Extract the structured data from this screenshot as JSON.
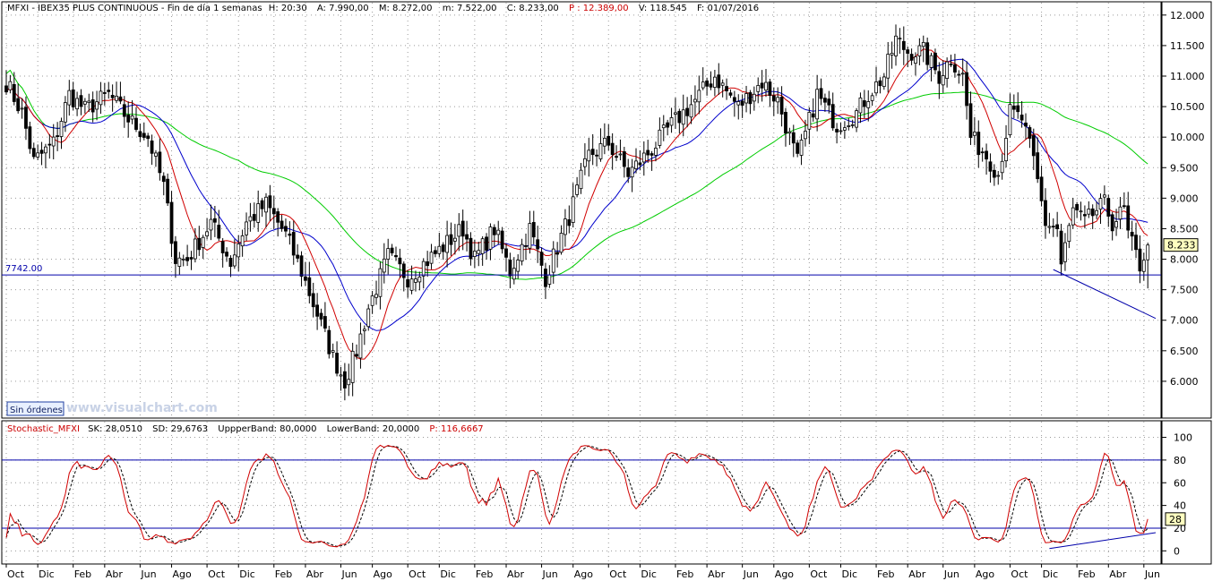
{
  "header": {
    "symbol": "MFXI",
    "description": "IBEX35 PLUS CONTINUOUS",
    "timeframe": "Fin de día 1 semanas",
    "time": "H: 20:30",
    "open": "A: 7.990,00",
    "high": "M: 8.272,00",
    "low": "m: 7.522,00",
    "close": "C: 8.233,00",
    "price": "P : 12.389,00",
    "volume": "V: 118.545",
    "date": "F: 01/07/2016"
  },
  "watermark": "www.visualchart.com",
  "orders_button": "Sin órdenes",
  "colors": {
    "candle": "#000000",
    "ma_fast": "#d00000",
    "ma_medium": "#0000cc",
    "ma_slow": "#00cc00",
    "hline": "#0000aa",
    "stoch_k": "#d00000",
    "stoch_d": "#000000",
    "price_tag": "#ffffc0",
    "watermark": "#c8d2e6"
  },
  "chart_data": [
    {
      "type": "candlestick",
      "title": "",
      "ylim": [
        5500,
        12100
      ],
      "yticks": [
        "6.000",
        "6.500",
        "7.000",
        "7.500",
        "8.000",
        "8.500",
        "9.000",
        "9.500",
        "10.000",
        "10.500",
        "11.000",
        "11.500",
        "12.000"
      ],
      "yticks_values": [
        6000,
        6500,
        7000,
        7500,
        8000,
        8500,
        9000,
        9500,
        10000,
        10500,
        11000,
        11500,
        12000
      ],
      "x_axis_labels": [
        "Oct",
        "Dic",
        "Feb",
        "Abr",
        "Jun",
        "Ago",
        "Oct",
        "Dic",
        "Feb",
        "Abr",
        "Jun",
        "Ago",
        "Oct",
        "Dic",
        "Feb",
        "Abr",
        "Jun",
        "Ago",
        "Oct",
        "Dic",
        "Feb",
        "Abr",
        "Jun",
        "Ago",
        "Oct",
        "Dic",
        "Feb",
        "Abr",
        "Jun",
        "Ago",
        "Oct",
        "Dic",
        "Feb",
        "Abr",
        "Jun"
      ],
      "x_axis_week_index": [
        0,
        8,
        17,
        25,
        34,
        42,
        51,
        59,
        68,
        76,
        85,
        93,
        102,
        110,
        119,
        127,
        136,
        144,
        153,
        161,
        170,
        178,
        187,
        195,
        204,
        212,
        221,
        229,
        238,
        246,
        255,
        263,
        272,
        280,
        289
      ],
      "weeks": 293,
      "grid": true,
      "horizontal_line": {
        "label": "7742.00",
        "value": 7742
      },
      "trend_line": {
        "from": [
          266,
          7830
        ],
        "to": [
          292,
          7030
        ]
      },
      "last_price_label": "8.233",
      "last_price": 8233,
      "close_path_anchors": [
        [
          0,
          10900
        ],
        [
          4,
          10400
        ],
        [
          7,
          9600
        ],
        [
          12,
          9900
        ],
        [
          16,
          10700
        ],
        [
          20,
          10450
        ],
        [
          26,
          10700
        ],
        [
          31,
          10300
        ],
        [
          36,
          10000
        ],
        [
          40,
          9200
        ],
        [
          43,
          8000
        ],
        [
          46,
          8000
        ],
        [
          52,
          8600
        ],
        [
          57,
          7950
        ],
        [
          61,
          8600
        ],
        [
          66,
          8900
        ],
        [
          71,
          8400
        ],
        [
          75,
          7800
        ],
        [
          79,
          7100
        ],
        [
          83,
          6400
        ],
        [
          86,
          6000
        ],
        [
          89,
          6500
        ],
        [
          92,
          7200
        ],
        [
          97,
          8050
        ],
        [
          102,
          7700
        ],
        [
          110,
          8150
        ],
        [
          116,
          8500
        ],
        [
          119,
          8000
        ],
        [
          124,
          8500
        ],
        [
          128,
          7800
        ],
        [
          133,
          8500
        ],
        [
          137,
          7700
        ],
        [
          143,
          8700
        ],
        [
          148,
          9700
        ],
        [
          153,
          9900
        ],
        [
          158,
          9400
        ],
        [
          164,
          9800
        ],
        [
          169,
          10200
        ],
        [
          175,
          10600
        ],
        [
          180,
          11000
        ],
        [
          186,
          10500
        ],
        [
          192,
          10900
        ],
        [
          196,
          10600
        ],
        [
          201,
          9600
        ],
        [
          206,
          10700
        ],
        [
          211,
          10200
        ],
        [
          216,
          10400
        ],
        [
          219,
          10700
        ],
        [
          223,
          11000
        ],
        [
          226,
          11600
        ],
        [
          229,
          11400
        ],
        [
          233,
          11400
        ],
        [
          237,
          11000
        ],
        [
          240,
          11300
        ],
        [
          243,
          11000
        ],
        [
          245,
          10000
        ],
        [
          249,
          9700
        ],
        [
          252,
          9400
        ],
        [
          255,
          10400
        ],
        [
          258,
          10300
        ],
        [
          261,
          9600
        ],
        [
          264,
          8600
        ],
        [
          267,
          8500
        ],
        [
          268,
          7900
        ],
        [
          271,
          8800
        ],
        [
          274,
          8600
        ],
        [
          277,
          8800
        ],
        [
          279,
          8900
        ],
        [
          281,
          8600
        ],
        [
          284,
          8800
        ],
        [
          285,
          8400
        ],
        [
          288,
          7900
        ],
        [
          290,
          8233
        ]
      ],
      "series": [
        {
          "name": "",
          "kind": "sma",
          "period": 10
        },
        {
          "name": "",
          "kind": "sma",
          "period": 20
        },
        {
          "name": "",
          "kind": "sma",
          "period": 60
        }
      ]
    },
    {
      "type": "line",
      "title": "",
      "indicator": {
        "name": "Stochastic_MFXI",
        "sk": "SK: 28,0510",
        "sd": "SD: 29,6763",
        "upper": "UppperBand: 80,0000",
        "lower": "LowerBand: 20,0000",
        "p": "P: 116,6667"
      },
      "ylim": [
        -10,
        102
      ],
      "yticks": [
        "0",
        "20",
        "40",
        "60",
        "80",
        "100"
      ],
      "yticks_values": [
        0,
        20,
        40,
        60,
        80,
        100
      ],
      "bands": [
        80,
        20
      ],
      "last_value_label": "28",
      "last_value": 28,
      "trend_line": {
        "from": [
          265,
          2
        ],
        "to": [
          292,
          16
        ]
      },
      "series": [
        {
          "name": "",
          "kind": "stoch_k"
        },
        {
          "name": "",
          "kind": "stoch_d"
        }
      ]
    }
  ]
}
